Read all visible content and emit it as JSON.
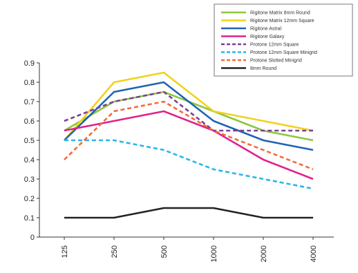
{
  "chart_data": {
    "type": "line",
    "title": "",
    "xlabel": "",
    "ylabel": "",
    "categories": [
      "125",
      "250",
      "500",
      "1000",
      "2000",
      "4000"
    ],
    "ylim": [
      0,
      0.9
    ],
    "yticks": [
      "0",
      "0.1",
      "0.2",
      "0.3",
      "0.4",
      "0.5",
      "0.6",
      "0.7",
      "0.8",
      "0.9"
    ],
    "grid": false,
    "legend_position": "top-right",
    "series": [
      {
        "name": "Rigitone Matrix 8mm Round",
        "color": "#8dc63f",
        "dash": "solid",
        "values": [
          0.55,
          0.7,
          0.75,
          0.65,
          0.55,
          0.5
        ]
      },
      {
        "name": "Rigitone Matrix 12mm Square",
        "color": "#f2d21b",
        "dash": "solid",
        "values": [
          0.5,
          0.8,
          0.85,
          0.65,
          0.6,
          0.55
        ]
      },
      {
        "name": "Rigitone Astral",
        "color": "#1f64b1",
        "dash": "solid",
        "values": [
          0.5,
          0.75,
          0.8,
          0.6,
          0.5,
          0.45
        ]
      },
      {
        "name": "Rigitone Galaxy",
        "color": "#e0218a",
        "dash": "solid",
        "values": [
          0.55,
          0.6,
          0.65,
          0.55,
          0.4,
          0.3
        ]
      },
      {
        "name": "Protone 12mm Square",
        "color": "#7b3f98",
        "dash": "dashed",
        "values": [
          0.6,
          0.7,
          0.75,
          0.55,
          0.55,
          0.55
        ]
      },
      {
        "name": "Protone 12mm Square Minigrid",
        "color": "#29b6e8",
        "dash": "dashed",
        "values": [
          0.5,
          0.5,
          0.45,
          0.35,
          0.3,
          0.25
        ]
      },
      {
        "name": "Protone Slotted Minigrid",
        "color": "#f26b3a",
        "dash": "dashed",
        "values": [
          0.4,
          0.65,
          0.7,
          0.55,
          0.45,
          0.35
        ]
      },
      {
        "name": "8mm Round",
        "color": "#222222",
        "dash": "solid",
        "values": [
          0.1,
          0.1,
          0.15,
          0.15,
          0.1,
          0.1
        ]
      }
    ]
  }
}
